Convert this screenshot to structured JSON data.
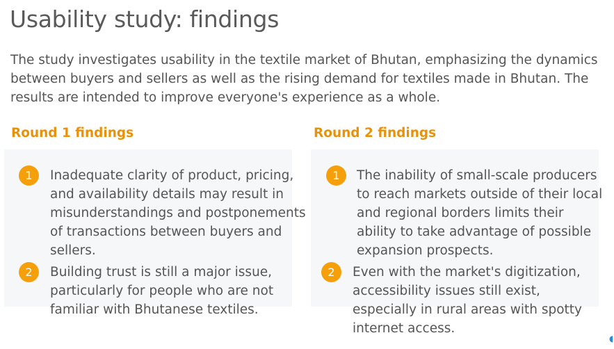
{
  "title": "Usability study: findings",
  "intro": "The study investigates usability in the textile market of Bhutan, emphasizing the dynamics between buyers and sellers as well as the rising demand for textiles made in Bhutan. The results are intended to improve everyone's experience as a whole.",
  "round1": {
    "heading": "Round 1 findings",
    "items": [
      {
        "num": "1",
        "text": "Inadequate clarity of product, pricing, and availability details may result in misunderstandings and postponements of transactions between buyers and sellers."
      },
      {
        "num": "2",
        "text": "Building trust is still a major issue, particularly for people who are not familiar with Bhutanese textiles."
      }
    ]
  },
  "round2": {
    "heading": "Round 2 findings",
    "items": [
      {
        "num": "1",
        "text": "The inability of small-scale producers to reach markets outside of their local and regional borders limits their ability to take advantage of possible expansion prospects."
      },
      {
        "num": "2",
        "text": "Even with the market's digitization, accessibility issues still exist, especially in rural areas with spotty internet access."
      }
    ]
  },
  "colors": {
    "accent": "#f5a00a",
    "heading": "#e8920c",
    "panel": "#f6f7f9",
    "text": "#555555"
  }
}
